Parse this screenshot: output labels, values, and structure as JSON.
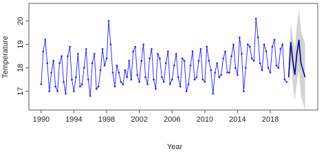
{
  "chart_data": {
    "type": "line",
    "x_label": "Year",
    "y_label": "Temperature",
    "xlim": [
      1988.5,
      2023.8
    ],
    "ylim": [
      16.2,
      20.75
    ],
    "xticks": [
      1990,
      1994,
      1998,
      2002,
      2006,
      2010,
      2014,
      2018
    ],
    "yticks": [
      17,
      18,
      19,
      20
    ],
    "x": [
      1990,
      1990.25,
      1990.5,
      1990.75,
      1991,
      1991.25,
      1991.5,
      1991.75,
      1992,
      1992.25,
      1992.5,
      1992.75,
      1993,
      1993.25,
      1993.5,
      1993.75,
      1994,
      1994.25,
      1994.5,
      1994.75,
      1995,
      1995.25,
      1995.5,
      1995.75,
      1996,
      1996.25,
      1996.5,
      1996.75,
      1997,
      1997.25,
      1997.5,
      1997.75,
      1998,
      1998.25,
      1998.5,
      1998.75,
      1999,
      1999.25,
      1999.5,
      1999.75,
      2000,
      2000.25,
      2000.5,
      2000.75,
      2001,
      2001.25,
      2001.5,
      2001.75,
      2002,
      2002.25,
      2002.5,
      2002.75,
      2003,
      2003.25,
      2003.5,
      2003.75,
      2004,
      2004.25,
      2004.5,
      2004.75,
      2005,
      2005.25,
      2005.5,
      2005.75,
      2006,
      2006.25,
      2006.5,
      2006.75,
      2007,
      2007.25,
      2007.5,
      2007.75,
      2008,
      2008.25,
      2008.5,
      2008.75,
      2009,
      2009.25,
      2009.5,
      2009.75,
      2010,
      2010.25,
      2010.5,
      2010.75,
      2011,
      2011.25,
      2011.5,
      2011.75,
      2012,
      2012.25,
      2012.5,
      2012.75,
      2013,
      2013.25,
      2013.5,
      2013.75,
      2014,
      2014.25,
      2014.5,
      2014.75,
      2015,
      2015.25,
      2015.5,
      2015.75,
      2016,
      2016.25,
      2016.5,
      2016.75,
      2017,
      2017.25,
      2017.5,
      2017.75,
      2018,
      2018.25,
      2018.5,
      2018.75,
      2019,
      2019.25,
      2019.5,
      2019.75,
      2020
    ],
    "series": [
      {
        "color": "#1a1aff",
        "values": [
          17.3,
          18.7,
          19.2,
          18.2,
          17.0,
          17.8,
          18.3,
          17.2,
          17.0,
          18.2,
          18.5,
          17.4,
          16.9,
          18.5,
          18.9,
          17.5,
          17.0,
          17.6,
          18.6,
          17.2,
          17.3,
          18.0,
          18.8,
          17.5,
          16.8,
          18.2,
          18.6,
          17.1,
          17.2,
          17.9,
          18.8,
          18.1,
          18.4,
          20.0,
          19.0,
          17.8,
          17.2,
          18.1,
          17.8,
          17.4,
          17.3,
          17.9,
          17.6,
          18.3,
          17.5,
          18.7,
          18.9,
          17.7,
          17.4,
          18.3,
          19.0,
          17.6,
          17.3,
          18.4,
          18.8,
          17.5,
          17.1,
          18.6,
          18.4,
          17.6,
          17.4,
          18.2,
          18.7,
          17.3,
          17.5,
          18.1,
          18.6,
          17.6,
          17.2,
          18.4,
          18.3,
          17.0,
          17.3,
          18.1,
          18.7,
          17.5,
          17.6,
          18.3,
          18.8,
          17.5,
          17.4,
          18.9,
          18.3,
          17.9,
          16.9,
          17.8,
          18.2,
          17.6,
          17.7,
          18.4,
          18.7,
          17.8,
          17.8,
          18.5,
          19.0,
          18.0,
          17.7,
          19.3,
          18.6,
          17.0,
          18.0,
          19.0,
          18.9,
          18.4,
          18.3,
          20.1,
          19.3,
          18.2,
          17.9,
          19.0,
          18.7,
          18.0,
          17.8,
          18.9,
          19.2,
          18.1,
          18.0,
          18.8,
          19.0,
          17.5,
          17.4
        ]
      },
      {
        "color": "#00008b",
        "x": [
          2020.25,
          2020.5,
          2020.75,
          2021,
          2021.25,
          2021.5,
          2021.75,
          2022,
          2022.25
        ],
        "values": [
          17.6,
          19.1,
          18.3,
          17.7,
          18.6,
          19.2,
          18.2,
          17.9,
          17.6
        ]
      }
    ],
    "band": {
      "color": "#d3d3d3",
      "x": [
        2020.25,
        2020.5,
        2020.75,
        2021,
        2021.25,
        2021.5,
        2021.75,
        2022,
        2022.25
      ],
      "lower": [
        17.0,
        18.3,
        17.3,
        16.6,
        17.4,
        17.9,
        16.8,
        16.5,
        16.2
      ],
      "upper": [
        18.2,
        19.9,
        19.3,
        18.8,
        19.8,
        20.5,
        19.6,
        19.3,
        19.0
      ]
    }
  }
}
